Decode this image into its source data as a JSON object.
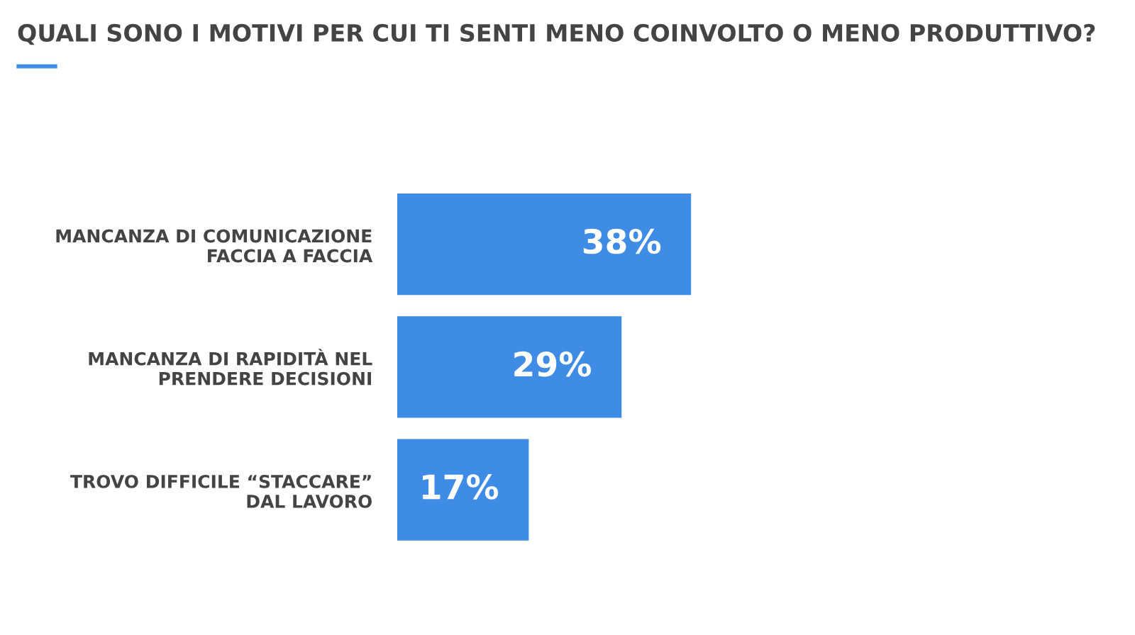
{
  "chart_data": {
    "type": "bar",
    "orientation": "horizontal",
    "title": "QUALI SONO I MOTIVI PER CUI TI SENTI MENO COINVOLTO O MENO PRODUTTIVO?",
    "categories": [
      "MANCANZA DI COMUNICAZIONE\nFACCIA A FACCIA",
      "MANCANZA DI RAPIDITÀ NEL\nPRENDERE DECISIONI",
      "TROVO DIFFICILE “STACCARE”\nDAL LAVORO"
    ],
    "values": [
      38,
      29,
      17
    ],
    "value_labels": [
      "38%",
      "29%",
      "17%"
    ],
    "color": "#3f8ce6",
    "grid": false,
    "legend": false
  }
}
